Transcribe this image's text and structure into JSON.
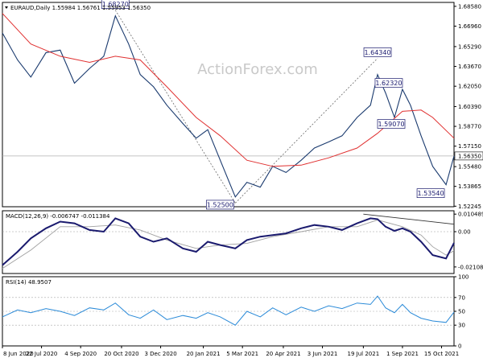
{
  "chart_data": [
    {
      "type": "candlestick",
      "panel": "price",
      "title": "EURAUD,Daily  1.55984 1.56761 1.55953 1.56350",
      "watermark": "ActionForex.com",
      "current_price_label": "1.56350",
      "current_price": 1.5635,
      "ylim": [
        1.522,
        1.689
      ],
      "y_ticks": [
        "1.68580",
        "1.66960",
        "1.65290",
        "1.63670",
        "1.62050",
        "1.60390",
        "1.58770",
        "1.57150",
        "1.55480",
        "1.53865",
        "1.52245"
      ],
      "y_tick_values": [
        1.6858,
        1.6696,
        1.6529,
        1.6367,
        1.6205,
        1.6039,
        1.5877,
        1.5715,
        1.5548,
        1.53865,
        1.52245
      ],
      "annotations": [
        {
          "label": "1.68270",
          "date": "2020-10-13",
          "value": 1.6827
        },
        {
          "label": "1.52500",
          "date": "2021-02-25",
          "value": 1.525
        },
        {
          "label": "1.64340",
          "date": "2021-08-04",
          "value": 1.6434
        },
        {
          "label": "1.62320",
          "date": "2021-08-13",
          "value": 1.6232
        },
        {
          "label": "1.59070",
          "date": "2021-08-23",
          "value": 1.5907
        },
        {
          "label": "1.53540",
          "date": "2021-10-20",
          "value": 1.5354
        }
      ],
      "trendlines": [
        {
          "from": {
            "date": "2020-10-13",
            "value": 1.6827
          },
          "to": {
            "date": "2021-02-25",
            "value": 1.525
          },
          "style": "dashed"
        },
        {
          "from": {
            "date": "2021-02-25",
            "value": 1.525
          },
          "to": {
            "date": "2021-08-04",
            "value": 1.6434
          },
          "style": "dashed"
        }
      ],
      "series": [
        {
          "name": "Close",
          "color": "#1a3a6e",
          "points": [
            [
              "2020-06-08",
              1.664
            ],
            [
              "2020-06-25",
              1.642
            ],
            [
              "2020-07-10",
              1.628
            ],
            [
              "2020-07-27",
              1.648
            ],
            [
              "2020-08-12",
              1.65
            ],
            [
              "2020-08-28",
              1.623
            ],
            [
              "2020-09-14",
              1.635
            ],
            [
              "2020-09-30",
              1.645
            ],
            [
              "2020-10-13",
              1.678
            ],
            [
              "2020-10-28",
              1.655
            ],
            [
              "2020-11-10",
              1.63
            ],
            [
              "2020-11-25",
              1.62
            ],
            [
              "2020-12-10",
              1.605
            ],
            [
              "2020-12-28",
              1.59
            ],
            [
              "2021-01-12",
              1.578
            ],
            [
              "2021-01-25",
              1.585
            ],
            [
              "2021-02-08",
              1.56
            ],
            [
              "2021-02-25",
              1.53
            ],
            [
              "2021-03-10",
              1.542
            ],
            [
              "2021-03-25",
              1.538
            ],
            [
              "2021-04-08",
              1.555
            ],
            [
              "2021-04-23",
              1.55
            ],
            [
              "2021-05-10",
              1.56
            ],
            [
              "2021-05-25",
              1.57
            ],
            [
              "2021-06-10",
              1.575
            ],
            [
              "2021-06-25",
              1.58
            ],
            [
              "2021-07-12",
              1.595
            ],
            [
              "2021-07-27",
              1.605
            ],
            [
              "2021-08-04",
              1.63
            ],
            [
              "2021-08-13",
              1.615
            ],
            [
              "2021-08-23",
              1.595
            ],
            [
              "2021-09-01",
              1.618
            ],
            [
              "2021-09-10",
              1.605
            ],
            [
              "2021-09-22",
              1.58
            ],
            [
              "2021-10-05",
              1.555
            ],
            [
              "2021-10-20",
              1.54
            ],
            [
              "2021-10-29",
              1.5635
            ]
          ]
        },
        {
          "name": "MA",
          "color": "#e03030",
          "points": [
            [
              "2020-06-08",
              1.68
            ],
            [
              "2020-07-10",
              1.655
            ],
            [
              "2020-08-12",
              1.645
            ],
            [
              "2020-09-14",
              1.64
            ],
            [
              "2020-10-13",
              1.645
            ],
            [
              "2020-11-10",
              1.642
            ],
            [
              "2020-12-10",
              1.62
            ],
            [
              "2021-01-12",
              1.595
            ],
            [
              "2021-02-08",
              1.58
            ],
            [
              "2021-03-10",
              1.56
            ],
            [
              "2021-04-08",
              1.555
            ],
            [
              "2021-05-10",
              1.556
            ],
            [
              "2021-06-10",
              1.562
            ],
            [
              "2021-07-12",
              1.57
            ],
            [
              "2021-08-04",
              1.582
            ],
            [
              "2021-09-01",
              1.6
            ],
            [
              "2021-09-22",
              1.601
            ],
            [
              "2021-10-05",
              1.595
            ],
            [
              "2021-10-29",
              1.578
            ]
          ]
        }
      ]
    },
    {
      "type": "line",
      "panel": "macd",
      "title": "MACD(12,26,9) -0.006747 -0.011384",
      "ylim": [
        -0.025,
        0.0125
      ],
      "y_ticks": [
        "0.010489",
        "0.00",
        "-0.021083"
      ],
      "y_tick_values": [
        0.010489,
        0.0,
        -0.021083
      ],
      "trendline": {
        "from": {
          "date": "2021-07-19",
          "value": 0.0105
        },
        "to": {
          "date": "2021-10-29",
          "value": 0.0045
        }
      },
      "series": [
        {
          "name": "MACD",
          "color": "#1a1a6e",
          "points": [
            [
              "2020-06-08",
              -0.02
            ],
            [
              "2020-06-25",
              -0.012
            ],
            [
              "2020-07-10",
              -0.004
            ],
            [
              "2020-07-27",
              0.002
            ],
            [
              "2020-08-12",
              0.006
            ],
            [
              "2020-08-28",
              0.005
            ],
            [
              "2020-09-14",
              0.001
            ],
            [
              "2020-09-30",
              0.0
            ],
            [
              "2020-10-13",
              0.008
            ],
            [
              "2020-10-28",
              0.005
            ],
            [
              "2020-11-10",
              -0.003
            ],
            [
              "2020-11-25",
              -0.006
            ],
            [
              "2020-12-10",
              -0.004
            ],
            [
              "2020-12-28",
              -0.01
            ],
            [
              "2021-01-12",
              -0.012
            ],
            [
              "2021-01-25",
              -0.006
            ],
            [
              "2021-02-08",
              -0.008
            ],
            [
              "2021-02-25",
              -0.01
            ],
            [
              "2021-03-10",
              -0.005
            ],
            [
              "2021-03-25",
              -0.003
            ],
            [
              "2021-04-08",
              -0.002
            ],
            [
              "2021-04-23",
              -0.001
            ],
            [
              "2021-05-10",
              0.002
            ],
            [
              "2021-05-25",
              0.004
            ],
            [
              "2021-06-10",
              0.003
            ],
            [
              "2021-06-25",
              0.001
            ],
            [
              "2021-07-12",
              0.005
            ],
            [
              "2021-07-27",
              0.008
            ],
            [
              "2021-08-04",
              0.0075
            ],
            [
              "2021-08-13",
              0.003
            ],
            [
              "2021-08-23",
              0.0005
            ],
            [
              "2021-09-01",
              0.002
            ],
            [
              "2021-09-10",
              0.0
            ],
            [
              "2021-09-22",
              -0.006
            ],
            [
              "2021-10-05",
              -0.014
            ],
            [
              "2021-10-20",
              -0.016
            ],
            [
              "2021-10-29",
              -0.0067
            ]
          ]
        },
        {
          "name": "Signal",
          "color": "#a0a0a0",
          "points": [
            [
              "2020-06-08",
              -0.022
            ],
            [
              "2020-07-10",
              -0.011
            ],
            [
              "2020-08-12",
              0.003
            ],
            [
              "2020-09-14",
              0.003
            ],
            [
              "2020-10-13",
              0.004
            ],
            [
              "2020-11-10",
              0.001
            ],
            [
              "2020-12-10",
              -0.005
            ],
            [
              "2021-01-12",
              -0.01
            ],
            [
              "2021-02-08",
              -0.008
            ],
            [
              "2021-03-10",
              -0.007
            ],
            [
              "2021-04-08",
              -0.003
            ],
            [
              "2021-05-10",
              0.0
            ],
            [
              "2021-06-10",
              0.003
            ],
            [
              "2021-07-12",
              0.003
            ],
            [
              "2021-08-04",
              0.007
            ],
            [
              "2021-09-01",
              0.003
            ],
            [
              "2021-09-22",
              -0.002
            ],
            [
              "2021-10-05",
              -0.009
            ],
            [
              "2021-10-20",
              -0.014
            ],
            [
              "2021-10-29",
              -0.0114
            ]
          ]
        }
      ]
    },
    {
      "type": "line",
      "panel": "rsi",
      "title": "RSI(14) 48.9507",
      "ylim": [
        0,
        100
      ],
      "y_ticks": [
        "100",
        "70",
        "50",
        "30",
        "0"
      ],
      "y_tick_values": [
        100,
        70,
        50,
        30,
        0
      ],
      "series": [
        {
          "name": "RSI",
          "color": "#2a8ad8",
          "points": [
            [
              "2020-06-08",
              42
            ],
            [
              "2020-06-25",
              52
            ],
            [
              "2020-07-10",
              48
            ],
            [
              "2020-07-27",
              54
            ],
            [
              "2020-08-12",
              50
            ],
            [
              "2020-08-28",
              44
            ],
            [
              "2020-09-14",
              55
            ],
            [
              "2020-09-30",
              52
            ],
            [
              "2020-10-13",
              62
            ],
            [
              "2020-10-28",
              45
            ],
            [
              "2020-11-10",
              40
            ],
            [
              "2020-11-25",
              52
            ],
            [
              "2020-12-10",
              38
            ],
            [
              "2020-12-28",
              44
            ],
            [
              "2021-01-12",
              40
            ],
            [
              "2021-01-25",
              48
            ],
            [
              "2021-02-08",
              42
            ],
            [
              "2021-02-25",
              30
            ],
            [
              "2021-03-10",
              50
            ],
            [
              "2021-03-25",
              42
            ],
            [
              "2021-04-08",
              55
            ],
            [
              "2021-04-23",
              45
            ],
            [
              "2021-05-10",
              56
            ],
            [
              "2021-05-25",
              50
            ],
            [
              "2021-06-10",
              58
            ],
            [
              "2021-06-25",
              54
            ],
            [
              "2021-07-12",
              62
            ],
            [
              "2021-07-27",
              60
            ],
            [
              "2021-08-04",
              72
            ],
            [
              "2021-08-13",
              55
            ],
            [
              "2021-08-23",
              48
            ],
            [
              "2021-09-01",
              60
            ],
            [
              "2021-09-10",
              48
            ],
            [
              "2021-09-22",
              40
            ],
            [
              "2021-10-05",
              36
            ],
            [
              "2021-10-20",
              34
            ],
            [
              "2021-10-29",
              48.95
            ]
          ]
        }
      ]
    }
  ],
  "x_axis": {
    "range": [
      "2020-06-08",
      "2021-10-29"
    ],
    "ticks": [
      {
        "label": "8 Jun 2020",
        "date": "2020-06-08"
      },
      {
        "label": "22 Jul 2020",
        "date": "2020-07-22"
      },
      {
        "label": "4 Sep 2020",
        "date": "2020-09-04"
      },
      {
        "label": "20 Oct 2020",
        "date": "2020-10-20"
      },
      {
        "label": "3 Dec 2020",
        "date": "2020-12-03"
      },
      {
        "label": "20 Jan 2021",
        "date": "2021-01-20"
      },
      {
        "label": "5 Mar 2021",
        "date": "2021-03-05"
      },
      {
        "label": "20 Apr 2021",
        "date": "2021-04-20"
      },
      {
        "label": "3 Jun 2021",
        "date": "2021-06-03"
      },
      {
        "label": "19 Jul 2021",
        "date": "2021-07-19"
      },
      {
        "label": "1 Sep 2021",
        "date": "2021-09-01"
      },
      {
        "label": "15 Oct 2021",
        "date": "2021-10-15"
      }
    ]
  }
}
